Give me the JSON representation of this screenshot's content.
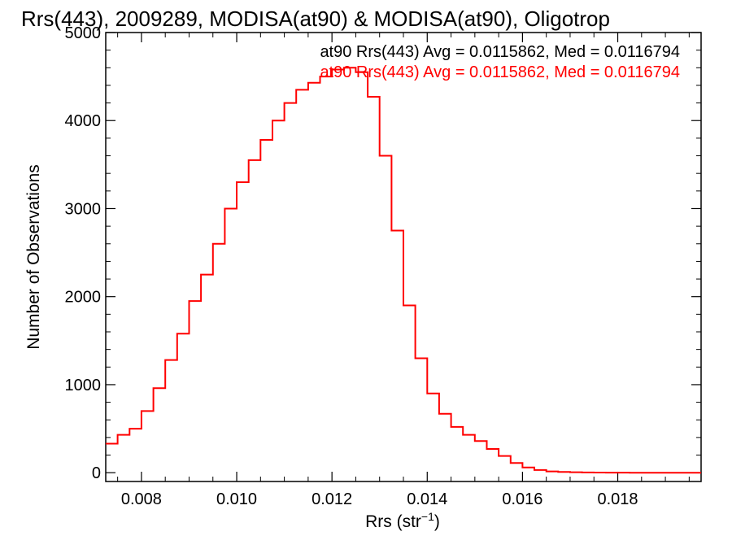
{
  "chart_data": {
    "type": "line",
    "title": "Rrs(443), 2009289, MODISA(at90) & MODISA(at90), Oligotrop",
    "xlabel": "Rrs (str",
    "xlabel_sup": "−1",
    "xlabel_close": ")",
    "ylabel": "Number of Observations",
    "xlim": [
      0.00725,
      0.01975
    ],
    "ylim": [
      -100,
      5000
    ],
    "x_ticks": [
      0.008,
      0.01,
      0.012,
      0.014,
      0.016,
      0.018
    ],
    "x_tick_labels": [
      "0.008",
      "0.010",
      "0.012",
      "0.014",
      "0.016",
      "0.018"
    ],
    "y_ticks": [
      0,
      1000,
      2000,
      3000,
      4000,
      5000
    ],
    "y_tick_labels": [
      "0",
      "1000",
      "2000",
      "3000",
      "4000",
      "5000"
    ],
    "grid": false,
    "legend_placement": "top-right",
    "legend": [
      {
        "text": "at90 Rrs(443) Avg = 0.0115862, Med = 0.0116794",
        "color": "#000000"
      },
      {
        "text": "at90 Rrs(443) Avg = 0.0115862, Med = 0.0116794",
        "color": "#ff0000"
      }
    ],
    "series": [
      {
        "color": "#ff0000",
        "step": true,
        "x": [
          0.00725,
          0.0075,
          0.00775,
          0.008,
          0.00825,
          0.0085,
          0.00875,
          0.009,
          0.00925,
          0.0095,
          0.00975,
          0.01,
          0.01025,
          0.0105,
          0.01075,
          0.011,
          0.01125,
          0.0115,
          0.01175,
          0.012,
          0.01225,
          0.0125,
          0.01275,
          0.013,
          0.01325,
          0.0135,
          0.01375,
          0.014,
          0.01425,
          0.0145,
          0.01475,
          0.015,
          0.01525,
          0.0155,
          0.01575,
          0.016,
          0.01625,
          0.0165,
          0.01675,
          0.017,
          0.01725,
          0.0175,
          0.01775,
          0.018,
          0.01825,
          0.0185,
          0.01875,
          0.019,
          0.01925,
          0.0195
        ],
        "values": [
          330,
          430,
          500,
          700,
          960,
          1280,
          1580,
          1950,
          2250,
          2600,
          3000,
          3300,
          3550,
          3780,
          4000,
          4200,
          4350,
          4430,
          4500,
          4580,
          4600,
          4550,
          4270,
          3600,
          2750,
          1900,
          1300,
          900,
          670,
          520,
          430,
          360,
          270,
          190,
          110,
          60,
          30,
          15,
          8,
          5,
          3,
          2,
          1,
          1,
          0,
          0,
          0,
          0,
          0,
          0
        ]
      }
    ]
  }
}
